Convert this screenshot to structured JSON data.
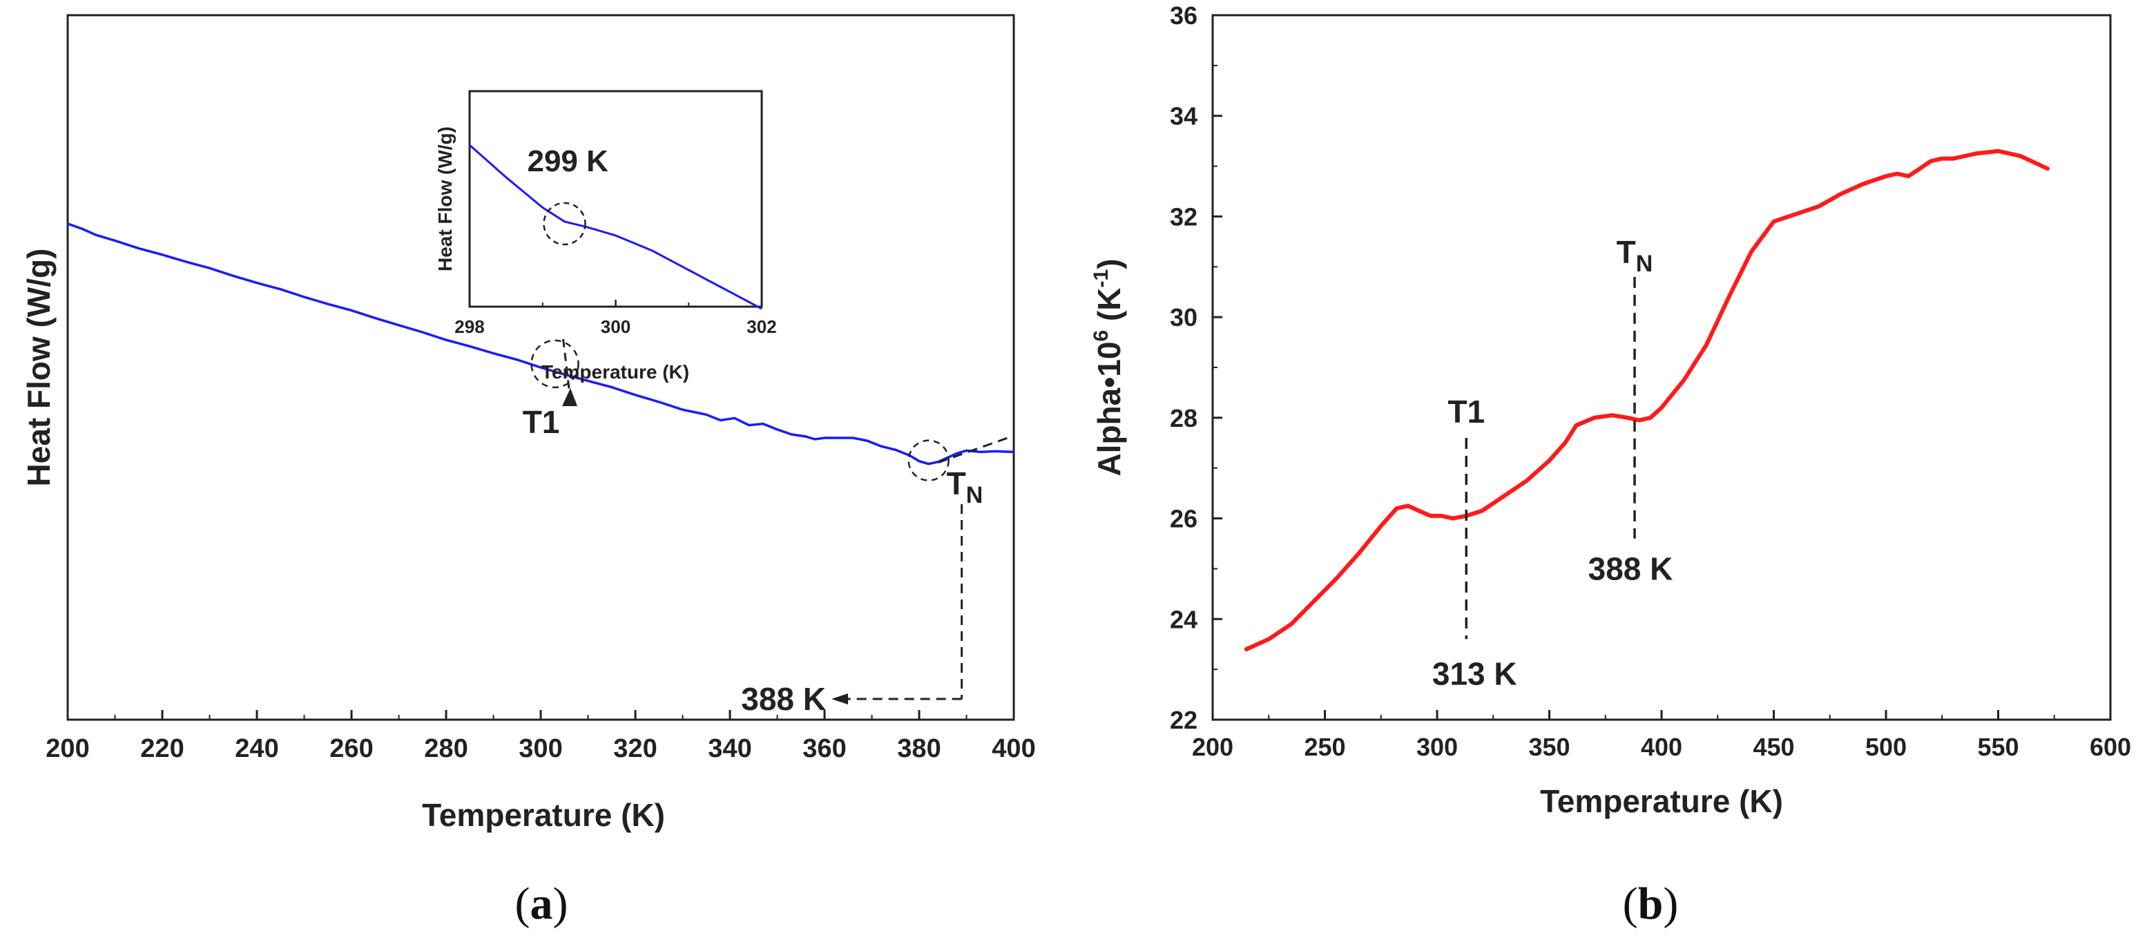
{
  "chart_data": [
    {
      "id": "a",
      "type": "line",
      "panel_label_open": "(",
      "panel_label_letter": "a",
      "panel_label_close": ")",
      "xlabel": "Temperature (K)",
      "ylabel": "Heat Flow (W/g)",
      "xlim": [
        200,
        400
      ],
      "ylim": [
        0,
        1
      ],
      "yticks_shown": false,
      "x_ticks": [
        200,
        220,
        240,
        260,
        280,
        300,
        320,
        340,
        360,
        380,
        400
      ],
      "series": [
        {
          "name": "Heat Flow",
          "color": "#1a1aff",
          "x": [
            200,
            203,
            206,
            210,
            215,
            220,
            225,
            230,
            235,
            240,
            245,
            250,
            255,
            260,
            265,
            270,
            275,
            280,
            285,
            290,
            295,
            300,
            305,
            310,
            315,
            320,
            325,
            330,
            335,
            338,
            341,
            344,
            347,
            350,
            353,
            356,
            358,
            360,
            363,
            366,
            369,
            372,
            375,
            378,
            380,
            382,
            384,
            386,
            388,
            390,
            393,
            396,
            400
          ],
          "y": [
            0.704,
            0.697,
            0.688,
            0.68,
            0.669,
            0.66,
            0.65,
            0.641,
            0.63,
            0.62,
            0.611,
            0.6,
            0.59,
            0.581,
            0.57,
            0.56,
            0.55,
            0.539,
            0.53,
            0.52,
            0.511,
            0.5,
            0.49,
            0.481,
            0.472,
            0.461,
            0.451,
            0.44,
            0.433,
            0.425,
            0.428,
            0.418,
            0.42,
            0.412,
            0.405,
            0.402,
            0.398,
            0.4,
            0.4,
            0.4,
            0.396,
            0.388,
            0.383,
            0.375,
            0.367,
            0.363,
            0.366,
            0.372,
            0.378,
            0.382,
            0.38,
            0.381,
            0.38
          ]
        }
      ],
      "annotations": {
        "t1_label": "T1",
        "t1_x": 303,
        "t1_y": 0.505,
        "tn_label": "T",
        "tn_sub": "N",
        "tn_marker_x": 389,
        "tn_circle_x": 382,
        "tn_circle_y": 0.368,
        "tn_value_label": "388 K",
        "tn_extrapolation": {
          "x": [
            384,
            400
          ],
          "y": [
            0.365,
            0.403
          ]
        }
      },
      "inset": {
        "xlabel": "Temperature (K)",
        "ylabel": "Heat Flow (W/g)",
        "xlim": [
          298,
          302
        ],
        "ylim": [
          0,
          1
        ],
        "x_ticks": [
          298,
          300,
          302
        ],
        "series": {
          "x": [
            298,
            298.5,
            299,
            299.3,
            299.6,
            300,
            300.5,
            301,
            301.5,
            302
          ],
          "y": [
            0.75,
            0.6,
            0.46,
            0.395,
            0.37,
            0.33,
            0.26,
            0.17,
            0.08,
            -0.01
          ]
        },
        "annotation_label": "299 K",
        "annotation_x": 299.3
      }
    },
    {
      "id": "b",
      "type": "line",
      "panel_label_open": "(",
      "panel_label_letter": "b",
      "panel_label_close": ")",
      "xlabel": "Temperature (K)",
      "ylabel_main": "Alpha•10",
      "ylabel_sup": "6",
      "ylabel_unit_open": " (K",
      "ylabel_unit_sup": "-1",
      "ylabel_unit_close": ")",
      "xlim": [
        200,
        600
      ],
      "ylim": [
        22,
        36
      ],
      "x_ticks": [
        200,
        250,
        300,
        350,
        400,
        450,
        500,
        550,
        600
      ],
      "y_ticks": [
        22,
        24,
        26,
        28,
        30,
        32,
        34,
        36
      ],
      "series": [
        {
          "name": "Alpha",
          "color": "#ff1a1a",
          "x": [
            215,
            225,
            235,
            245,
            255,
            265,
            275,
            282,
            287,
            292,
            297,
            302,
            307,
            313,
            320,
            325,
            330,
            340,
            350,
            357,
            362,
            370,
            378,
            385,
            390,
            395,
            400,
            410,
            420,
            430,
            440,
            450,
            460,
            470,
            480,
            490,
            500,
            505,
            510,
            515,
            520,
            525,
            530,
            535,
            540,
            550,
            560,
            572
          ],
          "y": [
            23.4,
            23.6,
            23.9,
            24.35,
            24.8,
            25.3,
            25.85,
            26.2,
            26.25,
            26.15,
            26.05,
            26.05,
            26.0,
            26.05,
            26.15,
            26.3,
            26.45,
            26.75,
            27.15,
            27.5,
            27.85,
            28.0,
            28.05,
            28.0,
            27.95,
            28.0,
            28.2,
            28.75,
            29.45,
            30.4,
            31.3,
            31.9,
            32.05,
            32.2,
            32.45,
            32.65,
            32.8,
            32.85,
            32.8,
            32.95,
            33.1,
            33.15,
            33.15,
            33.2,
            33.25,
            33.3,
            33.2,
            32.95
          ]
        }
      ],
      "annotations": {
        "t1_label": "T1",
        "t1_value_label": "313 K",
        "t1_x": 313,
        "tn_label": "T",
        "tn_sub": "N",
        "tn_value_label": "388 K",
        "tn_x": 388
      }
    }
  ]
}
